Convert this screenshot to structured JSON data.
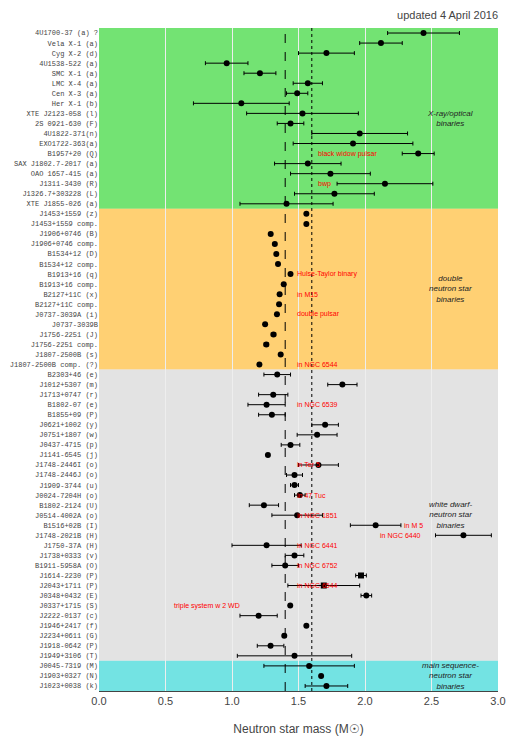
{
  "chart_data": {
    "type": "scatter",
    "title": "updated 4 April 2016",
    "xlabel": "Neutron star mass (M☉)",
    "xlim": [
      0.0,
      3.0
    ],
    "xticks": [
      {
        "value": 0.0,
        "label": "0.0"
      },
      0.5,
      {
        "value": 1.0,
        "label": "1.0"
      },
      1.5,
      {
        "value": 2.0,
        "label": "2.0"
      },
      2.5,
      {
        "value": 3.0,
        "label": "3.0"
      }
    ],
    "grid": true,
    "color": "#000000",
    "categories": [
      "4U1700-37 (a) ?",
      "Vela X-1 (a)",
      "Cyg X-2 (d)",
      "4U1538-522 (a)",
      "SMC X-1 (a)",
      "LMC X-4 (a)",
      "Cen X-3 (a)",
      "Her X-1 (b)",
      "XTE J2123-058 (l)",
      "2S 0921-630 (F)",
      "4U1822-371(n)",
      "EXO1722-363(a)",
      "B1957+20 (Q)",
      "SAX J1802.7-2017 (a)",
      "OAO 1657-415 (a)",
      "J1311-3430 (R)",
      "J1326.7+303228 (L)",
      "XTE J1855-026 (a)",
      "J1453+1559 (z)",
      "J1453+1559 comp.",
      "J1906+0746 (B)",
      "J1906+0746 comp.",
      "B1534+12 (D)",
      "B1534+12 comp.",
      "B1913+16 (q)",
      "B1913+16 comp.",
      "B2127+11C (x)",
      "B2127+11C comp.",
      "J0737-3039A (i)",
      "J0737-3039B",
      "J1756-2251 (J)",
      "J1756-2251 comp.",
      "J1807-2500B (s)",
      "J1807-2500B comp. (?)",
      "B2303+46 (e)",
      "J1012+5307 (m)",
      "J1713+0747 (r)",
      "B1802-07 (e)",
      "B1855+09 (P)",
      "J0621+1002 (y)",
      "J0751+1807 (w)",
      "J0437-4715 (p)",
      "J1141-6545 (j)",
      "J1748-2446I (o)",
      "J1748-2446J (o)",
      "J1909-3744 (u)",
      "J0024-7204H (o)",
      "B1802-2124 (U)",
      "J0514-4002A (o)",
      "B1516+02B (I)",
      "J1748-2021B (H)",
      "J1750-37A (H)",
      "J1738+0333 (v)",
      "B1911-5958A (O)",
      "J1614-2230 (P)",
      "J2043+1711 (P)",
      "J0348+0432 (E)",
      "J0337+1715 (S)",
      "J2222-0137 (c)",
      "J1946+2417 (f)",
      "J2234+0611 (G)",
      "J1918-0642 (P)",
      "J1949+3106 (T)",
      "J0045-7319 (M)",
      "J1903+0327 (N)",
      "J1023+0038 (k)"
    ],
    "values": [
      2.44,
      2.12,
      1.71,
      0.96,
      1.21,
      1.57,
      1.49,
      1.07,
      1.53,
      1.44,
      1.96,
      1.91,
      2.4,
      1.57,
      1.74,
      2.15,
      1.77,
      1.41,
      1.559,
      1.559,
      1.291,
      1.322,
      1.333,
      1.346,
      1.44,
      1.389,
      1.358,
      1.354,
      1.338,
      1.249,
      1.312,
      1.258,
      1.366,
      1.206,
      1.34,
      1.83,
      1.31,
      1.26,
      1.3,
      1.7,
      1.64,
      1.44,
      1.27,
      1.65,
      1.47,
      1.47,
      1.51,
      1.24,
      1.49,
      2.08,
      2.74,
      1.26,
      1.47,
      1.4,
      1.97,
      1.69,
      2.01,
      1.4378,
      1.2,
      1.559,
      1.393,
      1.29,
      1.47,
      1.58,
      1.67,
      1.71
    ],
    "error_low": [
      0.27,
      0.16,
      0.21,
      0.16,
      0.12,
      0.11,
      0.08,
      0.36,
      0.42,
      0.1,
      0.36,
      0.45,
      0.12,
      0.25,
      0.3,
      0.36,
      0.3,
      0.35,
      0.002,
      0.002,
      0.011,
      0.011,
      0.001,
      0.001,
      0.001,
      0.001,
      0.01,
      0.01,
      0.001,
      0.001,
      0.017,
      0.017,
      0.003,
      0.003,
      0.1,
      0.11,
      0.11,
      0.14,
      0.1,
      0.1,
      0.15,
      0.07,
      0.01,
      0.15,
      0.06,
      0.03,
      0.04,
      0.11,
      0.19,
      0.19,
      0.21,
      0.26,
      0.07,
      0.1,
      0.04,
      0.27,
      0.04,
      0.0001,
      0.14,
      0.005,
      0.013,
      0.1,
      0.43,
      0.34,
      0.01,
      0.16
    ],
    "error_high": [
      0.27,
      0.16,
      0.21,
      0.16,
      0.12,
      0.11,
      0.08,
      0.36,
      0.42,
      0.1,
      0.36,
      0.45,
      0.12,
      0.25,
      0.3,
      0.36,
      0.3,
      0.35,
      0.002,
      0.002,
      0.011,
      0.011,
      0.001,
      0.001,
      0.001,
      0.001,
      0.01,
      0.01,
      0.001,
      0.001,
      0.017,
      0.017,
      0.003,
      0.003,
      0.1,
      0.11,
      0.11,
      0.14,
      0.1,
      0.1,
      0.15,
      0.07,
      0.01,
      0.15,
      0.06,
      0.03,
      0.04,
      0.11,
      0.19,
      0.19,
      0.21,
      0.26,
      0.07,
      0.1,
      0.04,
      0.27,
      0.04,
      0.0001,
      0.14,
      0.005,
      0.013,
      0.1,
      0.43,
      0.34,
      0.01,
      0.16
    ],
    "markers": [
      "circle",
      "circle",
      "circle",
      "circle",
      "circle",
      "circle",
      "circle",
      "circle",
      "circle",
      "circle",
      "circle",
      "circle",
      "circle",
      "circle",
      "circle",
      "circle",
      "circle",
      "circle",
      "circle",
      "circle",
      "circle",
      "circle",
      "circle",
      "circle",
      "circle",
      "circle",
      "circle",
      "circle",
      "circle",
      "circle",
      "circle",
      "circle",
      "circle",
      "circle",
      "circle",
      "circle",
      "circle",
      "circle",
      "circle",
      "circle",
      "circle",
      "circle",
      "circle",
      "circle",
      "circle",
      "circle",
      "circle",
      "circle",
      "circle",
      "circle",
      "circle",
      "circle",
      "circle",
      "circle",
      "square",
      "square",
      "circle",
      "circle",
      "circle",
      "circle",
      "circle",
      "circle",
      "circle",
      "circle",
      "circle",
      "circle"
    ],
    "sections": [
      {
        "name": "X-ray/optical\nbinaries",
        "color": "#00cc00",
        "first": "4U1700-37 (a) ?",
        "last": "XTE J1855-026 (a)"
      },
      {
        "name": "double\nneutron star\nbinaries",
        "color": "#ffaa00",
        "first": "J1453+1559 (z)",
        "last": "J1807-2500B comp. (?)"
      },
      {
        "name": "white dwarf-\nneutron star\nbinaries",
        "color": "#cccccc",
        "first": "B2303+46 (e)",
        "last": "J1949+3106 (T)"
      },
      {
        "name": "main sequence-\nneutron star\nbinaries",
        "color": "#00cccc",
        "first": "J0045-7319 (M)",
        "last": "J1023+0038 (k)"
      }
    ],
    "reference_lines": [
      {
        "x": 1.4,
        "line_style": "dashed"
      },
      {
        "x": 1.6,
        "line_style": "dotted"
      }
    ],
    "annotations": [
      {
        "text": "black widow pulsar",
        "x": 1.63,
        "category": "B1957+20 (Q)",
        "color": "red"
      },
      {
        "text": "bwp",
        "x": 1.63,
        "category": "J1311-3430 (R)",
        "color": "red"
      },
      {
        "text": "Hulse-Taylor binary",
        "x": 1.47,
        "category": "B1913+16 (q)",
        "color": "red"
      },
      {
        "text": "in M15",
        "x": 1.47,
        "category": "B2127+11C (x)",
        "color": "red"
      },
      {
        "text": "double pulsar",
        "x": 1.47,
        "category": "J0737-3039A (i)",
        "color": "red"
      },
      {
        "text": "in NGC 6544",
        "x": 1.47,
        "category": "J1807-2500B comp. (?)",
        "color": "red"
      },
      {
        "text": "in NGC 6539",
        "x": 1.47,
        "category": "B1802-07 (e)",
        "color": "red"
      },
      {
        "text": "in Ter 5",
        "x": 1.47,
        "category": "J1748-2446I (o)",
        "color": "red"
      },
      {
        "text": "in 47 Tuc",
        "x": 1.47,
        "category": "J0024-7204H (o)",
        "color": "red"
      },
      {
        "text": "in NGC 1851",
        "x": 1.47,
        "category": "J0514-4002A (o)",
        "color": "red"
      },
      {
        "text": "in M 5",
        "x": 2.28,
        "category": "B1516+02B (I)",
        "color": "red"
      },
      {
        "text": "in NGC 6440",
        "x": 2.1,
        "category": "J1748-2021B (H)",
        "color": "red"
      },
      {
        "text": "in NGC 6441",
        "x": 1.47,
        "category": "J1750-37A (H)",
        "color": "red"
      },
      {
        "text": "in NGC 6752",
        "x": 1.47,
        "category": "B1911-5958A (O)",
        "color": "red"
      },
      {
        "text": "in NGC 6544",
        "x": 1.47,
        "category": "J2043+1711 (P)",
        "color": "red"
      },
      {
        "text": "triple system w 2 WD",
        "x": 0.55,
        "category": "J0337+1715 (S)",
        "color": "red"
      }
    ]
  }
}
